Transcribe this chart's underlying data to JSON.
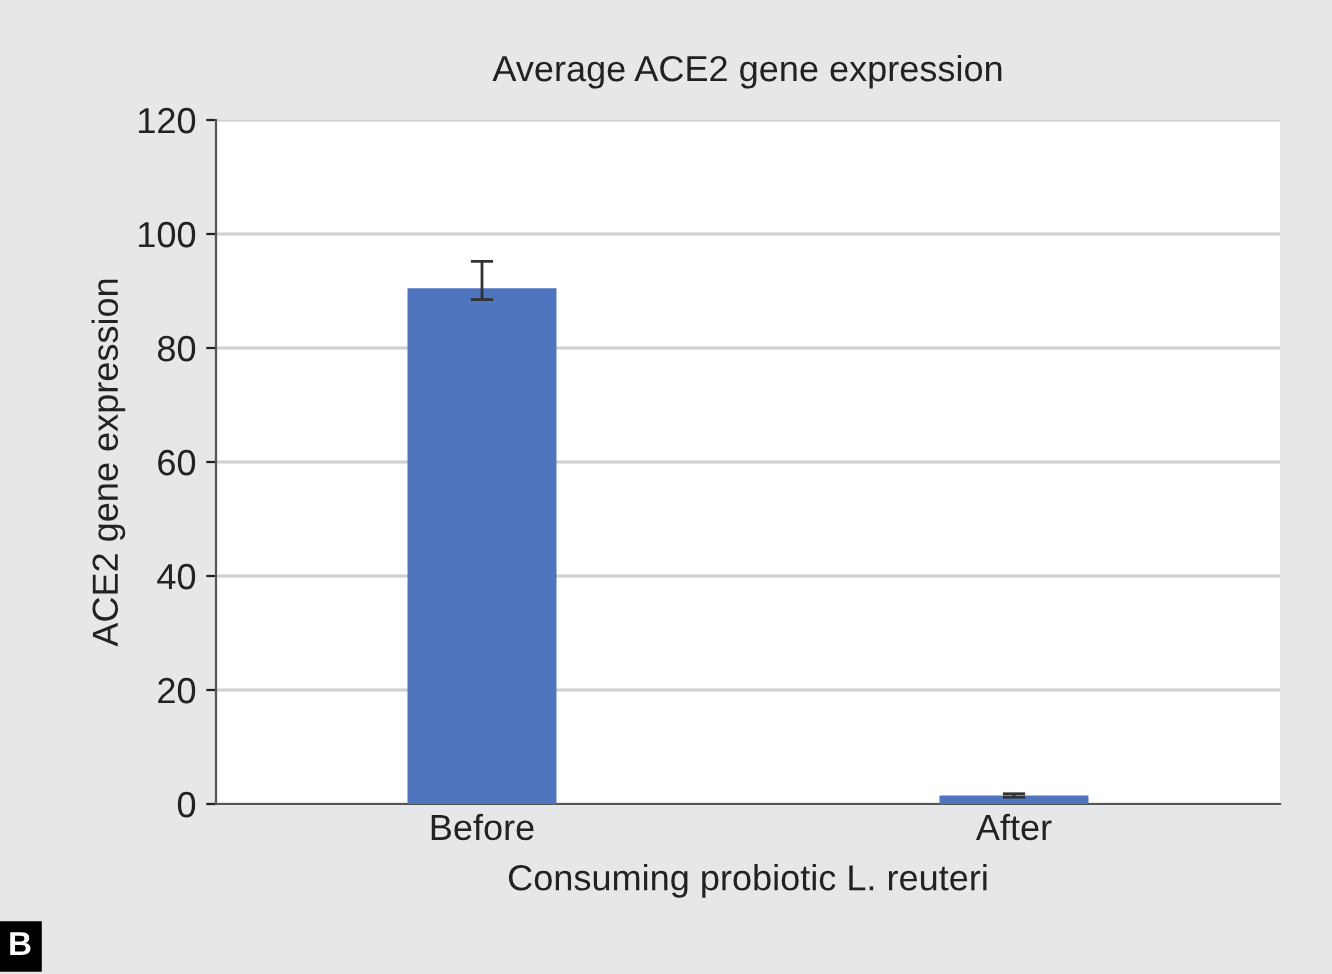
{
  "chart_data": {
    "type": "bar",
    "title": "Average ACE2 gene expression",
    "xlabel": "Consuming probiotic L. reuteri",
    "ylabel": "ACE2 gene expression",
    "categories": [
      "Before",
      "After"
    ],
    "values": [
      90.5,
      1.5
    ],
    "errors": [
      [
        88.5,
        95.2
      ],
      [
        1.2,
        1.8
      ]
    ],
    "color": "#4e75bd",
    "ylim": [
      0,
      120
    ],
    "yticks": [
      0,
      20,
      40,
      60,
      80,
      100,
      120
    ],
    "grid": "y",
    "annotations": [
      "B"
    ]
  }
}
